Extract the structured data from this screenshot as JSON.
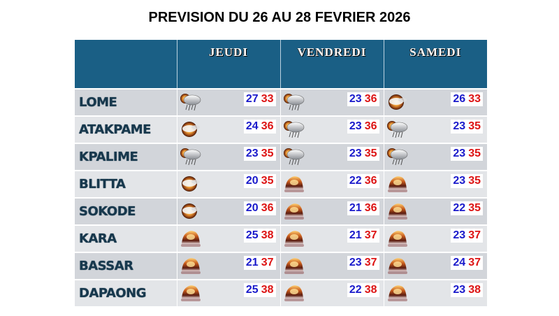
{
  "title": "PREVISION DU 26 AU 28 FEVRIER 2026",
  "colors": {
    "header_bg": "#1a5f85",
    "row_odd_bg": "#d2d5da",
    "row_even_bg": "#e3e5e8",
    "city_text": "#17384d",
    "min_temp": "#1a1acb",
    "max_temp": "#dd1414"
  },
  "days": [
    "JEUDI",
    "VENDREDI",
    "SAMEDI"
  ],
  "rows": [
    {
      "city": "LOME",
      "forecast": [
        {
          "icon": "cloud-rain-sun-icon",
          "min": "27",
          "max": "33"
        },
        {
          "icon": "cloud-rain-sun-icon",
          "min": "23",
          "max": "36"
        },
        {
          "icon": "sun-cloud-icon",
          "min": "26",
          "max": "33"
        }
      ]
    },
    {
      "city": "ATAKPAME",
      "forecast": [
        {
          "icon": "sun-cloud-icon",
          "min": "24",
          "max": "36"
        },
        {
          "icon": "cloud-rain-sun-icon",
          "min": "23",
          "max": "36"
        },
        {
          "icon": "cloud-rain-sun-icon",
          "min": "23",
          "max": "35"
        }
      ]
    },
    {
      "city": "KPALIME",
      "forecast": [
        {
          "icon": "cloud-rain-sun-icon",
          "min": "23",
          "max": "35"
        },
        {
          "icon": "cloud-rain-sun-icon",
          "min": "23",
          "max": "35"
        },
        {
          "icon": "cloud-rain-sun-icon",
          "min": "23",
          "max": "35"
        }
      ]
    },
    {
      "city": "BLITTA",
      "forecast": [
        {
          "icon": "sun-cloud-icon",
          "min": "20",
          "max": "35"
        },
        {
          "icon": "hazy-sun-icon",
          "min": "22",
          "max": "36"
        },
        {
          "icon": "hazy-sun-icon",
          "min": "23",
          "max": "35"
        }
      ]
    },
    {
      "city": "SOKODE",
      "forecast": [
        {
          "icon": "sun-cloud-icon",
          "min": "20",
          "max": "36"
        },
        {
          "icon": "hazy-sun-icon",
          "min": "21",
          "max": "36"
        },
        {
          "icon": "hazy-sun-icon",
          "min": "22",
          "max": "35"
        }
      ]
    },
    {
      "city": "KARA",
      "forecast": [
        {
          "icon": "hazy-sun-icon",
          "min": "25",
          "max": "38"
        },
        {
          "icon": "hazy-sun-icon",
          "min": "21",
          "max": "37"
        },
        {
          "icon": "hazy-sun-icon",
          "min": "23",
          "max": "37"
        }
      ]
    },
    {
      "city": "BASSAR",
      "forecast": [
        {
          "icon": "hazy-sun-icon",
          "min": "21",
          "max": "37"
        },
        {
          "icon": "hazy-sun-icon",
          "min": "23",
          "max": "37"
        },
        {
          "icon": "hazy-sun-icon",
          "min": "24",
          "max": "37"
        }
      ]
    },
    {
      "city": "DAPAONG",
      "forecast": [
        {
          "icon": "hazy-sun-icon",
          "min": "25",
          "max": "38"
        },
        {
          "icon": "hazy-sun-icon",
          "min": "22",
          "max": "38"
        },
        {
          "icon": "hazy-sun-icon",
          "min": "23",
          "max": "38"
        }
      ]
    }
  ]
}
